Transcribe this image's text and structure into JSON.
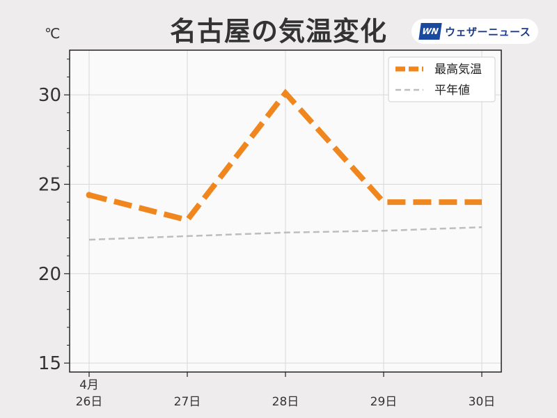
{
  "chart_data": {
    "type": "line",
    "title": "名古屋の気温変化",
    "unit": "℃",
    "x_month_label": "4月",
    "categories": [
      "26日",
      "27日",
      "28日",
      "29日",
      "30日"
    ],
    "ylim": [
      14.5,
      32.5
    ],
    "yticks": [
      15,
      20,
      25,
      30
    ],
    "grid": true,
    "legend_position": "top-right",
    "series": [
      {
        "name": "最高気温",
        "values": [
          24.4,
          23.0,
          30.1,
          24.0,
          24.0
        ],
        "color": "#f0861e",
        "style": "dashed-thick"
      },
      {
        "name": "平年値",
        "values": [
          21.9,
          22.1,
          22.3,
          22.4,
          22.6
        ],
        "color": "#bdbdbd",
        "style": "dashed-thin"
      }
    ]
  },
  "logo": {
    "mark": "WN",
    "text": "ウェザーニュース"
  }
}
